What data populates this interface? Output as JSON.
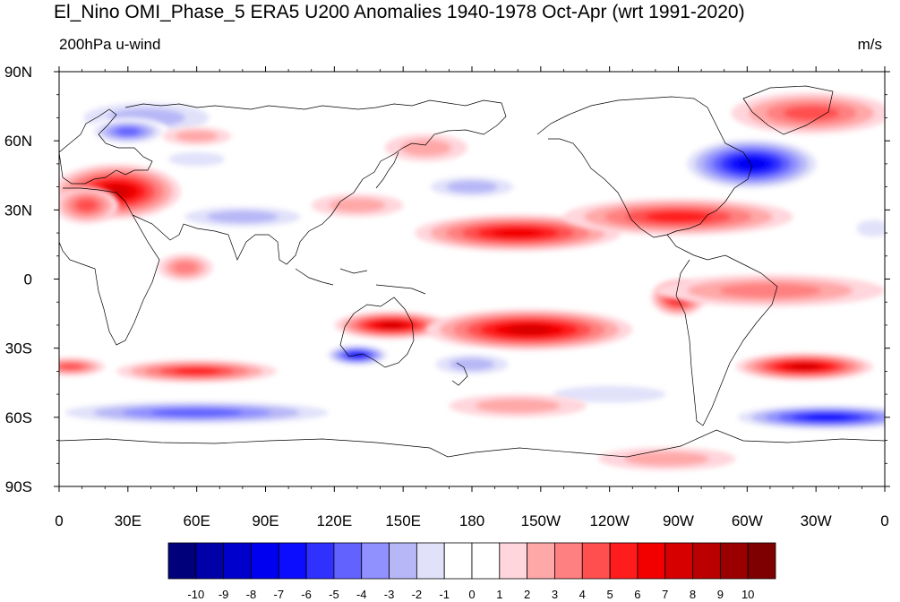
{
  "title": "El_Nino OMI_Phase_5 ERA5 U200 Anomalies 1940-1978 Oct-Apr (wrt 1991-2020)",
  "subtitle_left": "200hPa u-wind",
  "subtitle_right": "m/s",
  "map": {
    "projection": "cylindrical-equidistant",
    "lon_range": [
      0,
      360
    ],
    "lat_range": [
      -90,
      90
    ],
    "lon_ticks": [
      "0",
      "30E",
      "60E",
      "90E",
      "120E",
      "150E",
      "180",
      "150W",
      "120W",
      "90W",
      "60W",
      "30W",
      "0"
    ],
    "lat_ticks": [
      "90N",
      "60N",
      "30N",
      "0",
      "30S",
      "60S",
      "90S"
    ],
    "anomaly_features": [
      {
        "lon": 25,
        "lat": 38,
        "rx": 28,
        "ry": 12,
        "value": 7
      },
      {
        "lon": 12,
        "lat": 32,
        "rx": 14,
        "ry": 8,
        "value": 4
      },
      {
        "lon": 38,
        "lat": 70,
        "rx": 38,
        "ry": 9,
        "value": -3
      },
      {
        "lon": 30,
        "lat": 64,
        "rx": 18,
        "ry": 6,
        "value": -5
      },
      {
        "lon": 60,
        "lat": 52,
        "rx": 20,
        "ry": 5,
        "value": -2
      },
      {
        "lon": 60,
        "lat": 62,
        "rx": 15,
        "ry": 4,
        "value": 2
      },
      {
        "lon": 80,
        "lat": 27,
        "rx": 35,
        "ry": 6,
        "value": -3
      },
      {
        "lon": 160,
        "lat": 57,
        "rx": 18,
        "ry": 6,
        "value": 2
      },
      {
        "lon": 180,
        "lat": 40,
        "rx": 25,
        "ry": 6,
        "value": -3
      },
      {
        "lon": 130,
        "lat": 32,
        "rx": 20,
        "ry": 5,
        "value": 2
      },
      {
        "lon": 200,
        "lat": 20,
        "rx": 45,
        "ry": 8,
        "value": 6
      },
      {
        "lon": 270,
        "lat": 27,
        "rx": 50,
        "ry": 8,
        "value": 5
      },
      {
        "lon": 302,
        "lat": 50,
        "rx": 32,
        "ry": 12,
        "value": -8
      },
      {
        "lon": 328,
        "lat": 72,
        "rx": 35,
        "ry": 9,
        "value": 4
      },
      {
        "lon": 355,
        "lat": 22,
        "rx": 12,
        "ry": 6,
        "value": -2
      },
      {
        "lon": 55,
        "lat": 5,
        "rx": 12,
        "ry": 6,
        "value": 3
      },
      {
        "lon": 270,
        "lat": -8,
        "rx": 12,
        "ry": 8,
        "value": 6
      },
      {
        "lon": 310,
        "lat": -5,
        "rx": 50,
        "ry": 7,
        "value": 3
      },
      {
        "lon": 145,
        "lat": -20,
        "rx": 25,
        "ry": 6,
        "value": 7
      },
      {
        "lon": 205,
        "lat": -22,
        "rx": 45,
        "ry": 9,
        "value": 7
      },
      {
        "lon": 130,
        "lat": -33,
        "rx": 15,
        "ry": 5,
        "value": -7
      },
      {
        "lon": 180,
        "lat": -37,
        "rx": 22,
        "ry": 6,
        "value": -3
      },
      {
        "lon": 60,
        "lat": -40,
        "rx": 35,
        "ry": 5,
        "value": 5
      },
      {
        "lon": 5,
        "lat": -38,
        "rx": 15,
        "ry": 4,
        "value": 4
      },
      {
        "lon": 325,
        "lat": -38,
        "rx": 30,
        "ry": 6,
        "value": 7
      },
      {
        "lon": 60,
        "lat": -58,
        "rx": 70,
        "ry": 6,
        "value": -5
      },
      {
        "lon": 335,
        "lat": -60,
        "rx": 45,
        "ry": 6,
        "value": -7
      },
      {
        "lon": 240,
        "lat": -50,
        "rx": 40,
        "ry": 6,
        "value": -2
      },
      {
        "lon": 200,
        "lat": -55,
        "rx": 30,
        "ry": 5,
        "value": 2
      },
      {
        "lon": 265,
        "lat": -78,
        "rx": 30,
        "ry": 5,
        "value": 2
      }
    ]
  },
  "colorbar": {
    "colors": [
      "#00007a",
      "#0000a8",
      "#0000cc",
      "#0000f0",
      "#0c0cff",
      "#3030ff",
      "#6262ff",
      "#9090ff",
      "#b7b7f7",
      "#e1e1fa",
      "#ffffff",
      "#ffffff",
      "#ffd6dc",
      "#ffa8a8",
      "#ff8080",
      "#ff4f4f",
      "#ff1c1c",
      "#f20000",
      "#d60000",
      "#ba0000",
      "#9a0000",
      "#7e0000"
    ],
    "labels": [
      "-10",
      "-9",
      "-8",
      "-7",
      "-6",
      "-5",
      "-4",
      "-3",
      "-2",
      "-1",
      "0",
      "1",
      "2",
      "3",
      "4",
      "5",
      "6",
      "7",
      "8",
      "9",
      "10"
    ]
  }
}
